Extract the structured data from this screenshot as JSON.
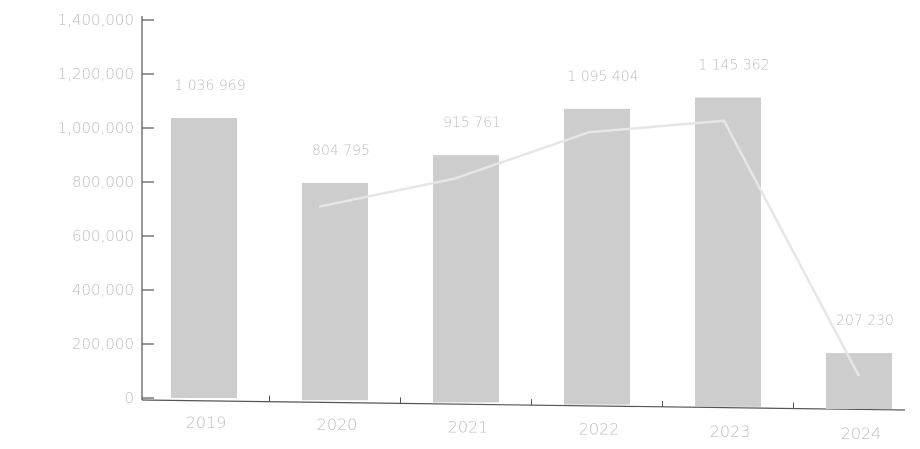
{
  "chart_data": {
    "type": "bar",
    "categories": [
      "2019",
      "2020",
      "2021",
      "2022",
      "2023",
      "2024"
    ],
    "values": [
      1036969,
      804795,
      915761,
      1095404,
      1145362,
      207230
    ],
    "value_labels": [
      "1 036 969",
      "804 795",
      "915 761",
      "1 095 404",
      "1 145 362",
      "207 230"
    ],
    "line_values": [
      null,
      804795,
      915761,
      1095404,
      1145362,
      207230
    ],
    "ylim": [
      0,
      1400000
    ],
    "yticks": [
      0,
      200000,
      400000,
      600000,
      800000,
      1000000,
      1200000,
      1400000
    ],
    "ytick_labels": [
      "0",
      "200,000",
      "400,000",
      "600,000",
      "800,000",
      "1,000,000",
      "1,200,000",
      "1,400,000"
    ],
    "title": "",
    "xlabel": "",
    "ylabel": "",
    "grid": false,
    "colors": {
      "bar": "#cdcdcd",
      "line": "#e6e6e6",
      "axis": "#555555",
      "text": "#bdbdbd"
    }
  }
}
